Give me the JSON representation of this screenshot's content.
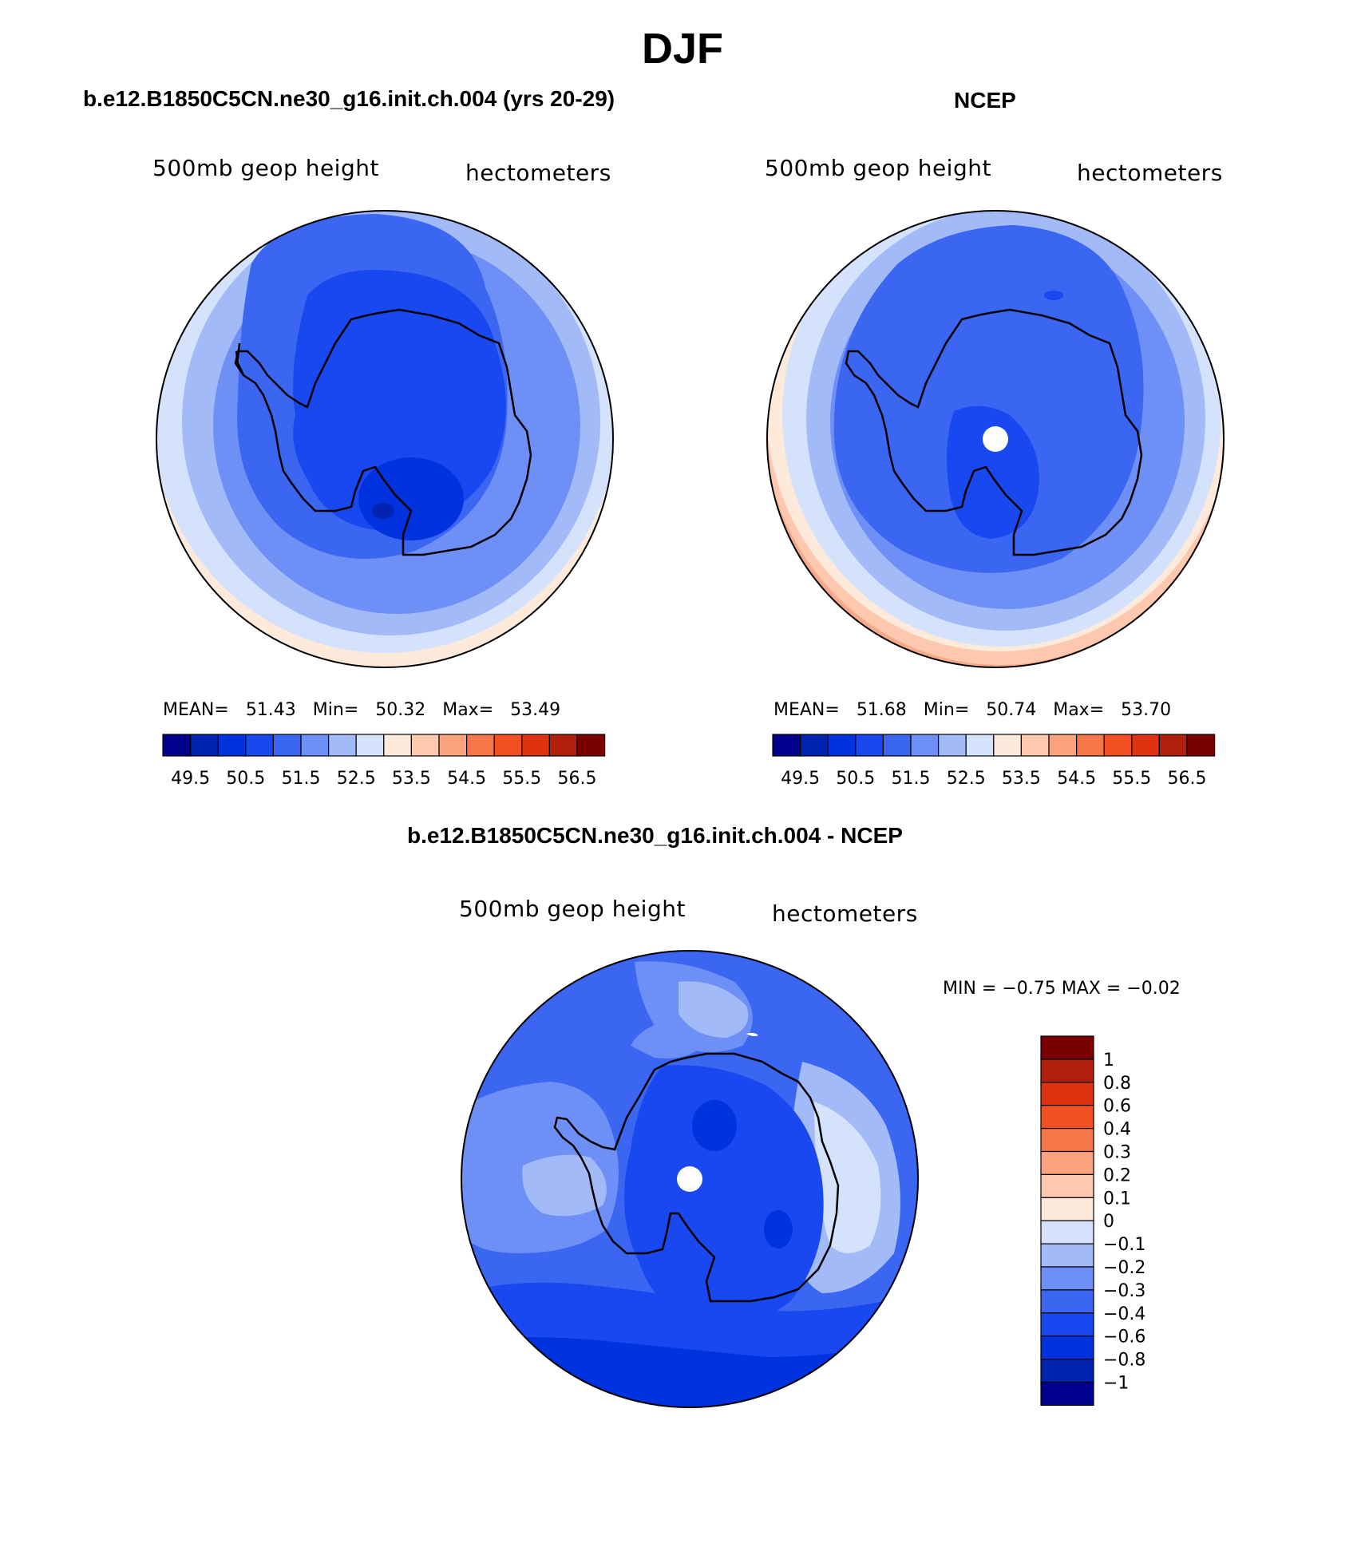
{
  "main_title": "DJF",
  "panels": [
    {
      "title": "b.e12.B1850C5CN.ne30_g16.init.ch.004 (yrs 20-29)",
      "variable": "500mb geop height",
      "units": "hectometers",
      "stats": {
        "mean_label": "MEAN=",
        "mean": "51.43",
        "min_label": "Min=",
        "min": "50.32",
        "max_label": "Max=",
        "max": "53.49"
      }
    },
    {
      "title": "NCEP",
      "variable": "500mb geop height",
      "units": "hectometers",
      "stats": {
        "mean_label": "MEAN=",
        "mean": "51.68",
        "min_label": "Min=",
        "min": "50.74",
        "max_label": "Max=",
        "max": "53.70"
      }
    }
  ],
  "diff_panel": {
    "title": "b.e12.B1850C5CN.ne30_g16.init.ch.004 - NCEP",
    "variable": "500mb geop height",
    "units": "hectometers",
    "minmax_text": "MIN =   −0.75 MAX =   −0.02"
  },
  "colors": {
    "main_bins": [
      "#00008c",
      "#0022b0",
      "#0033dd",
      "#1a48f0",
      "#3a66f2",
      "#6e8ff5",
      "#a3baf9",
      "#d4e2fb",
      "#feeadb",
      "#fdc8ae",
      "#fba27e",
      "#f7764a",
      "#f24f22",
      "#dd3310",
      "#b0200b",
      "#7a0000"
    ],
    "diff_bins": [
      "#00008c",
      "#0022b0",
      "#0033dd",
      "#1a48f0",
      "#3a66f2",
      "#6e8ff5",
      "#a3baf9",
      "#d4e2fb",
      "#feeadb",
      "#fdc8ae",
      "#fba27e",
      "#f7764a",
      "#f24f22",
      "#dd3310",
      "#b0200b",
      "#7a0000"
    ]
  },
  "main_colorbar_ticks": [
    "49.5",
    "50.5",
    "51.5",
    "52.5",
    "53.5",
    "54.5",
    "55.5",
    "56.5"
  ],
  "diff_colorbar_ticks": [
    "1",
    "0.8",
    "0.6",
    "0.4",
    "0.3",
    "0.2",
    "0.1",
    "0",
    "−0.1",
    "−0.2",
    "−0.3",
    "−0.4",
    "−0.6",
    "−0.8",
    "−1"
  ]
}
